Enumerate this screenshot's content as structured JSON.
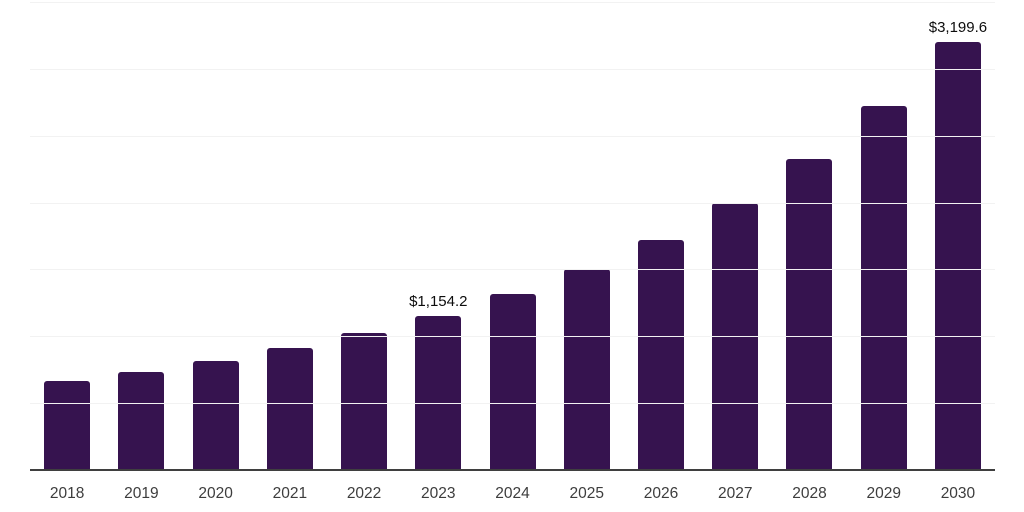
{
  "chart_data": {
    "type": "bar",
    "categories": [
      "2018",
      "2019",
      "2020",
      "2021",
      "2022",
      "2023",
      "2024",
      "2025",
      "2026",
      "2027",
      "2028",
      "2029",
      "2030"
    ],
    "values": [
      665,
      733,
      815,
      912,
      1025,
      1154.2,
      1316,
      1505,
      1720,
      1997,
      2326,
      2722,
      3199.6
    ],
    "value_labels": [
      "",
      "",
      "",
      "",
      "",
      "$1,154.2",
      "",
      "",
      "",
      "",
      "",
      "",
      "$3,199.6"
    ],
    "title": "",
    "xlabel": "",
    "ylabel": "",
    "ylim": [
      0,
      3500
    ],
    "grid": "horizontal",
    "gridline_values": [
      500,
      1000,
      1500,
      2000,
      2500,
      3000,
      3500
    ],
    "legend": "none"
  },
  "colors": {
    "bar": "#36134F",
    "background": "#ffffff",
    "gridline": "#f2f2f2",
    "axis_line": "#3f3f3f",
    "tick_label": "#3d3d3d",
    "value_label": "#0d0d0d"
  }
}
